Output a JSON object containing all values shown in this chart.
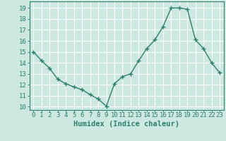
{
  "x": [
    0,
    1,
    2,
    3,
    4,
    5,
    6,
    7,
    8,
    9,
    10,
    11,
    12,
    13,
    14,
    15,
    16,
    17,
    18,
    19,
    20,
    21,
    22,
    23
  ],
  "y": [
    15,
    14.2,
    13.5,
    12.5,
    12.1,
    11.8,
    11.55,
    11.1,
    10.7,
    10.05,
    12.1,
    12.75,
    13.0,
    14.2,
    15.3,
    16.1,
    17.3,
    19.0,
    19.0,
    18.9,
    16.1,
    15.3,
    14.0,
    13.1
  ],
  "line_color": "#2d7f6e",
  "marker": "+",
  "marker_size": 4,
  "marker_lw": 1.0,
  "line_width": 1.0,
  "bg_color": "#cce8e0",
  "grid_color": "#ffffff",
  "xlabel": "Humidex (Indice chaleur)",
  "ylabel_ticks": [
    10,
    11,
    12,
    13,
    14,
    15,
    16,
    17,
    18,
    19
  ],
  "xlim": [
    -0.5,
    23.5
  ],
  "ylim": [
    9.7,
    19.6
  ],
  "xlabel_fontsize": 7.5,
  "tick_fontsize": 6.5,
  "tick_color": "#2d7f6e",
  "spine_color": "#2d7f6e"
}
